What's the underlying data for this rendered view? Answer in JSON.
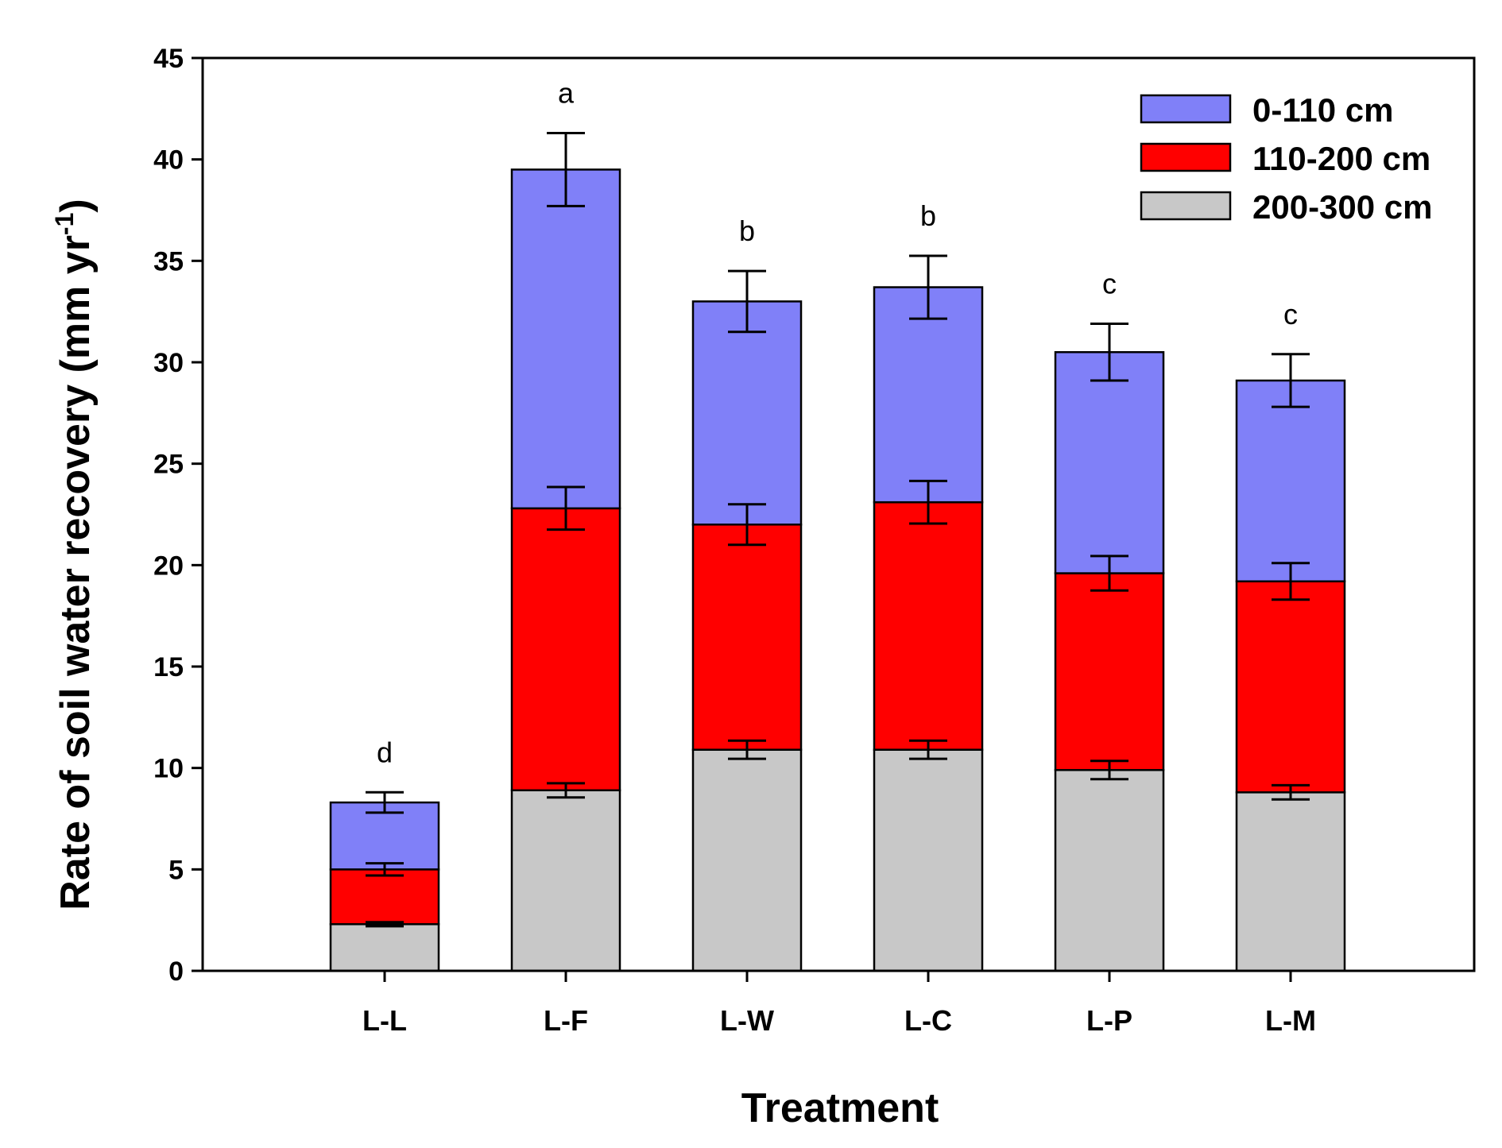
{
  "chart_data": {
    "type": "bar",
    "stacked": true,
    "title": "",
    "xlabel": "Treatment",
    "ylabel": "Rate of soil water recovery (mm  yr",
    "ylabel_superscript": "-1",
    "ylabel_close": ")",
    "ylim": [
      0,
      45
    ],
    "yticks": [
      0,
      5,
      10,
      15,
      20,
      25,
      30,
      35,
      40,
      45
    ],
    "categories": [
      "L-L",
      "L-F",
      "L-W",
      "L-C",
      "L-P",
      "L-M"
    ],
    "series": [
      {
        "name": "200-300 cm",
        "color": "#c8c8c8",
        "values": [
          2.3,
          8.9,
          10.9,
          10.9,
          9.9,
          8.8
        ],
        "errors": [
          0.1,
          0.35,
          0.45,
          0.45,
          0.45,
          0.35
        ]
      },
      {
        "name": "110-200 cm",
        "color": "#ff0000",
        "values": [
          2.7,
          13.9,
          11.1,
          12.2,
          9.7,
          10.4
        ],
        "errors": [
          0.3,
          1.05,
          1.0,
          1.05,
          0.85,
          0.9
        ]
      },
      {
        "name": "0-110 cm",
        "color": "#8080f8",
        "values": [
          3.3,
          16.7,
          11.0,
          10.6,
          10.9,
          9.9
        ],
        "errors": [
          0.5,
          1.8,
          1.5,
          1.55,
          1.4,
          1.3
        ]
      }
    ],
    "significance_letters": [
      "d",
      "a",
      "b",
      "b",
      "c",
      "c"
    ],
    "legend": {
      "position": "top-right",
      "order": [
        "0-110 cm",
        "110-200 cm",
        "200-300 cm"
      ]
    },
    "grid": false
  }
}
